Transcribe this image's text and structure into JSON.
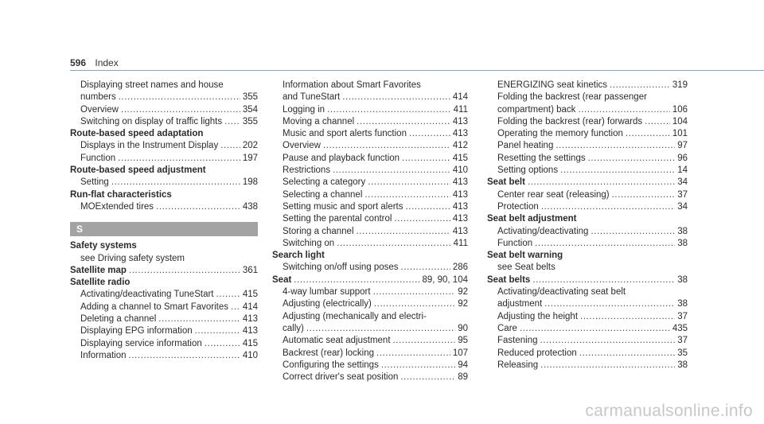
{
  "header": {
    "page_number": "596",
    "section": "Index"
  },
  "col1": {
    "e1_l1": "Displaying street names and house",
    "e1_l2": "numbers",
    "e1_p": "355",
    "e2": "Overview",
    "e2_p": "354",
    "e3": "Switching on display of traffic lights",
    "e3_p": "355",
    "e4": "Route-based speed adaptation",
    "e5": "Displays in the Instrument Display",
    "e5_p": "202",
    "e6": "Function",
    "e6_p": "197",
    "e7": "Route-based speed adjustment",
    "e8": "Setting",
    "e8_p": "198",
    "e9": "Run-flat characteristics",
    "e10": "MOExtended tires",
    "e10_p": "438",
    "letter": "S",
    "e11": "Safety systems",
    "e12": "see Driving safety system",
    "e13": "Satellite map",
    "e13_p": "361",
    "e14": "Satellite radio",
    "e15": "Activating/deactivating TuneStart",
    "e15_p": "415",
    "e16": "Adding a channel to Smart Favorites",
    "e16_p": "414",
    "e17": "Deleting a channel",
    "e17_p": "413",
    "e18": "Displaying EPG information",
    "e18_p": "413",
    "e19": "Displaying service information",
    "e19_p": "415",
    "e20": "Information",
    "e20_p": "410"
  },
  "col2": {
    "e1_l1": "Information about Smart Favorites",
    "e1_l2": "and TuneStart",
    "e1_p": "414",
    "e2": "Logging in",
    "e2_p": "411",
    "e3": "Moving a channel",
    "e3_p": "413",
    "e4": "Music and sport alerts function",
    "e4_p": "413",
    "e5": "Overview",
    "e5_p": "412",
    "e6": "Pause and playback function",
    "e6_p": "415",
    "e7": "Restrictions",
    "e7_p": "410",
    "e8": "Selecting a category",
    "e8_p": "413",
    "e9": "Selecting a channel",
    "e9_p": "413",
    "e10": "Setting music and sport alerts",
    "e10_p": "413",
    "e11": "Setting the parental control",
    "e11_p": "413",
    "e12": "Storing a channel",
    "e12_p": "413",
    "e13": "Switching on",
    "e13_p": "411",
    "e14": "Search light",
    "e15": "Switching on/off using poses",
    "e15_p": "286",
    "e16": "Seat",
    "e16_p": "89, 90, 104",
    "e17": "4-way lumbar support",
    "e17_p": "92",
    "e18": "Adjusting (electrically)",
    "e18_p": "92",
    "e19_l1": "Adjusting (mechanically and electri-",
    "e19_l2": "cally)",
    "e19_p": "90",
    "e20": "Automatic seat adjustment",
    "e20_p": "95",
    "e21": "Backrest (rear) locking",
    "e21_p": "107",
    "e22": "Configuring the settings",
    "e22_p": "94",
    "e23": "Correct driver's seat position",
    "e23_p": "89"
  },
  "col3": {
    "e1": "ENERGIZING seat kinetics",
    "e1_p": "319",
    "e2_l1": "Folding the backrest (rear passenger",
    "e2_l2": "compartment) back",
    "e2_p": "106",
    "e3": "Folding the backrest (rear) forwards",
    "e3_p": "104",
    "e4": "Operating the memory function",
    "e4_p": "101",
    "e5": "Panel heating",
    "e5_p": "97",
    "e6": "Resetting the settings",
    "e6_p": "96",
    "e7": "Setting options",
    "e7_p": "14",
    "e8": "Seat belt",
    "e8_p": "34",
    "e9": "Center rear seat (releasing)",
    "e9_p": "37",
    "e10": "Protection",
    "e10_p": "34",
    "e11": "Seat belt adjustment",
    "e12": "Activating/deactivating",
    "e12_p": "38",
    "e13": "Function",
    "e13_p": "38",
    "e14": "Seat belt warning",
    "e15": "see Seat belts",
    "e16": "Seat belts",
    "e16_p": "38",
    "e17_l1": "Activating/deactivating seat belt",
    "e17_l2": "adjustment",
    "e17_p": "38",
    "e18": "Adjusting the height",
    "e18_p": "37",
    "e19": "Care",
    "e19_p": "435",
    "e20": "Fastening",
    "e20_p": "37",
    "e21": "Reduced protection",
    "e21_p": "35",
    "e22": "Releasing",
    "e22_p": "38"
  },
  "watermark": "carmanualsonline.info"
}
